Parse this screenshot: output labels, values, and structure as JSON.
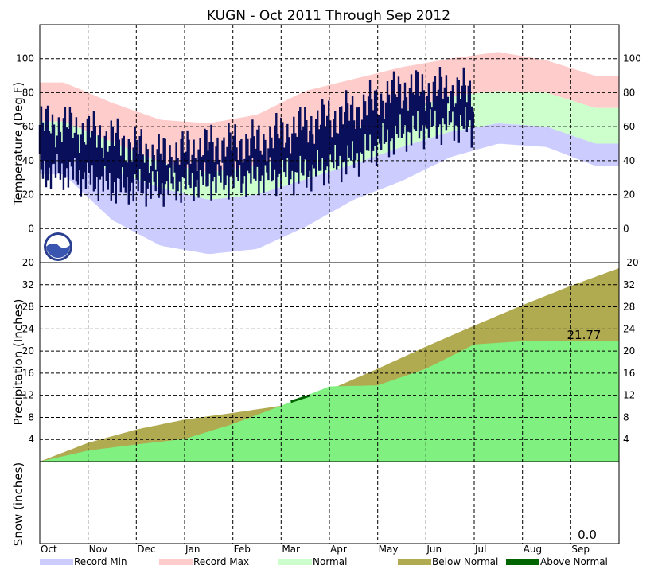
{
  "chart_data": {
    "type": "area",
    "title": "KUGN - Oct 2011 Through Sep 2012",
    "months": [
      "Oct",
      "Nov",
      "Dec",
      "Jan",
      "Feb",
      "Mar",
      "Apr",
      "May",
      "Jun",
      "Jul",
      "Aug",
      "Sep"
    ],
    "legend": [
      {
        "label": "Record Min",
        "color": "#ccccff"
      },
      {
        "label": "Record Max",
        "color": "#ffcccc"
      },
      {
        "label": "Normal",
        "color": "#ccffcc"
      },
      {
        "label": "Below Normal",
        "color": "#b0aa50"
      },
      {
        "label": "Above Normal",
        "color": "#006400"
      }
    ],
    "panels": [
      {
        "name": "temperature",
        "ylabel": "Temperature (Deg F)",
        "ylim": [
          -20,
          120
        ],
        "ticks": [
          -20,
          0,
          20,
          40,
          60,
          80,
          100
        ],
        "series": {
          "record_max_monthly": [
            86,
            74,
            64,
            62,
            67,
            81,
            88,
            95,
            100,
            104,
            99,
            90
          ],
          "normal_high_monthly": [
            63,
            51,
            39,
            33,
            37,
            47,
            58,
            69,
            78,
            81,
            80,
            71
          ],
          "normal_low_monthly": [
            44,
            34,
            24,
            17,
            20,
            29,
            38,
            48,
            57,
            62,
            60,
            50
          ],
          "record_min_monthly": [
            32,
            5,
            -10,
            -15,
            -12,
            1,
            17,
            28,
            42,
            50,
            48,
            37
          ],
          "observed_high_monthly": [
            61,
            53,
            43,
            49,
            51,
            61,
            69,
            82,
            82,
            78
          ],
          "observed_low_monthly": [
            33,
            25,
            24,
            28,
            30,
            32,
            41,
            56,
            62,
            55
          ]
        }
      },
      {
        "name": "precipitation",
        "ylabel": "Precipitation (Inches)",
        "ylim": [
          0,
          36
        ],
        "ticks": [
          4,
          8,
          12,
          16,
          20,
          24,
          28,
          32
        ],
        "series": {
          "normal_cumulative_monthly": [
            0,
            3.4,
            5.8,
            7.6,
            8.8,
            10.1,
            13.0,
            16.8,
            20.8,
            24.6,
            28.3,
            31.8,
            35.0
          ],
          "observed_cumulative_monthly": [
            0,
            2.0,
            3.1,
            4.1,
            6.8,
            10.1,
            13.6,
            13.8,
            16.8,
            21.2,
            21.77,
            21.77,
            21.77
          ]
        },
        "annotation": "21.77"
      },
      {
        "name": "snow",
        "ylabel": "Snow (inches)",
        "annotation": "0.0"
      }
    ]
  }
}
